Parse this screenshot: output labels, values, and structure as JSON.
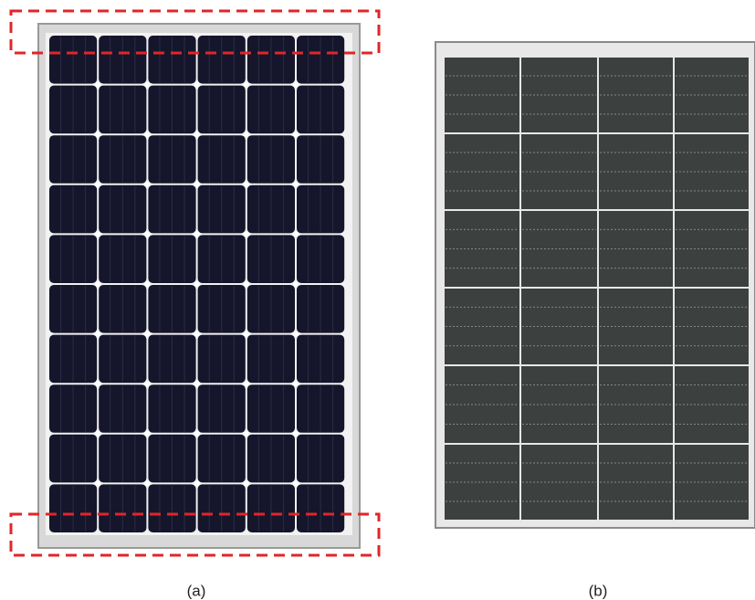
{
  "captions": {
    "a": "(a)",
    "b": "(b)"
  }
}
